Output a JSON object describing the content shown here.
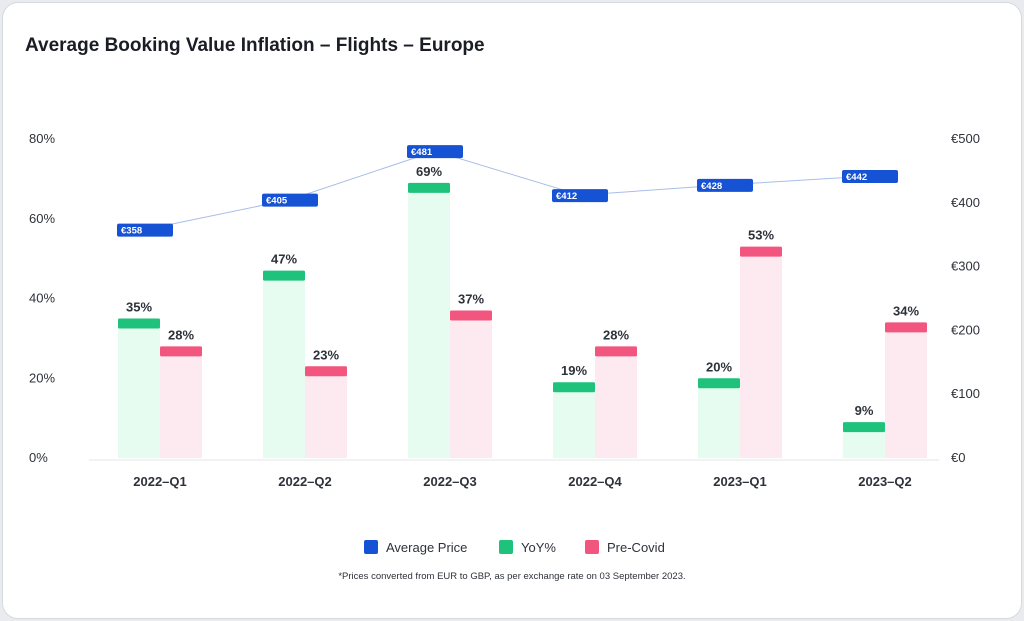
{
  "chart_data": {
    "type": "bar",
    "title": "Average Booking Value Inflation – Flights – Europe",
    "categories": [
      "2022–Q1",
      "2022–Q2",
      "2022–Q3",
      "2022–Q4",
      "2023–Q1",
      "2023–Q2"
    ],
    "series": [
      {
        "name": "YoY%",
        "type": "bar",
        "axis": "left",
        "values": [
          35,
          47,
          69,
          19,
          20,
          9
        ],
        "labels": [
          "35%",
          "47%",
          "69%",
          "19%",
          "20%",
          "9%"
        ],
        "color": "#1fc27a",
        "fill": "#e6fcf1"
      },
      {
        "name": "Pre-Covid",
        "type": "bar",
        "axis": "left",
        "values": [
          28,
          23,
          37,
          28,
          53,
          34
        ],
        "labels": [
          "28%",
          "23%",
          "37%",
          "28%",
          "53%",
          "34%"
        ],
        "color": "#f2557e",
        "fill": "#fdeaf0"
      },
      {
        "name": "Average Price",
        "type": "line",
        "axis": "right",
        "values": [
          358,
          405,
          481,
          412,
          428,
          442
        ],
        "labels": [
          "€358",
          "€405",
          "€481",
          "€412",
          "€428",
          "€442"
        ],
        "color": "#1552d4"
      }
    ],
    "left_axis": {
      "ylim": [
        0,
        80
      ],
      "ticks": [
        "0%",
        "20%",
        "40%",
        "60%",
        "80%"
      ],
      "tick_values": [
        0,
        20,
        40,
        60,
        80
      ]
    },
    "right_axis": {
      "ylim": [
        0,
        500
      ],
      "ticks": [
        "€0",
        "€100",
        "€200",
        "€300",
        "€400",
        "€500"
      ],
      "tick_values": [
        0,
        100,
        200,
        300,
        400,
        500
      ]
    },
    "legend": {
      "position": "bottom",
      "items": [
        {
          "label": "Average Price",
          "color": "#1552d4"
        },
        {
          "label": "YoY%",
          "color": "#1fc27a"
        },
        {
          "label": "Pre-Covid",
          "color": "#f2557e"
        }
      ]
    },
    "grid": false
  },
  "footnote": "*Prices converted from EUR to GBP, as per exchange rate on 03 September 2023."
}
